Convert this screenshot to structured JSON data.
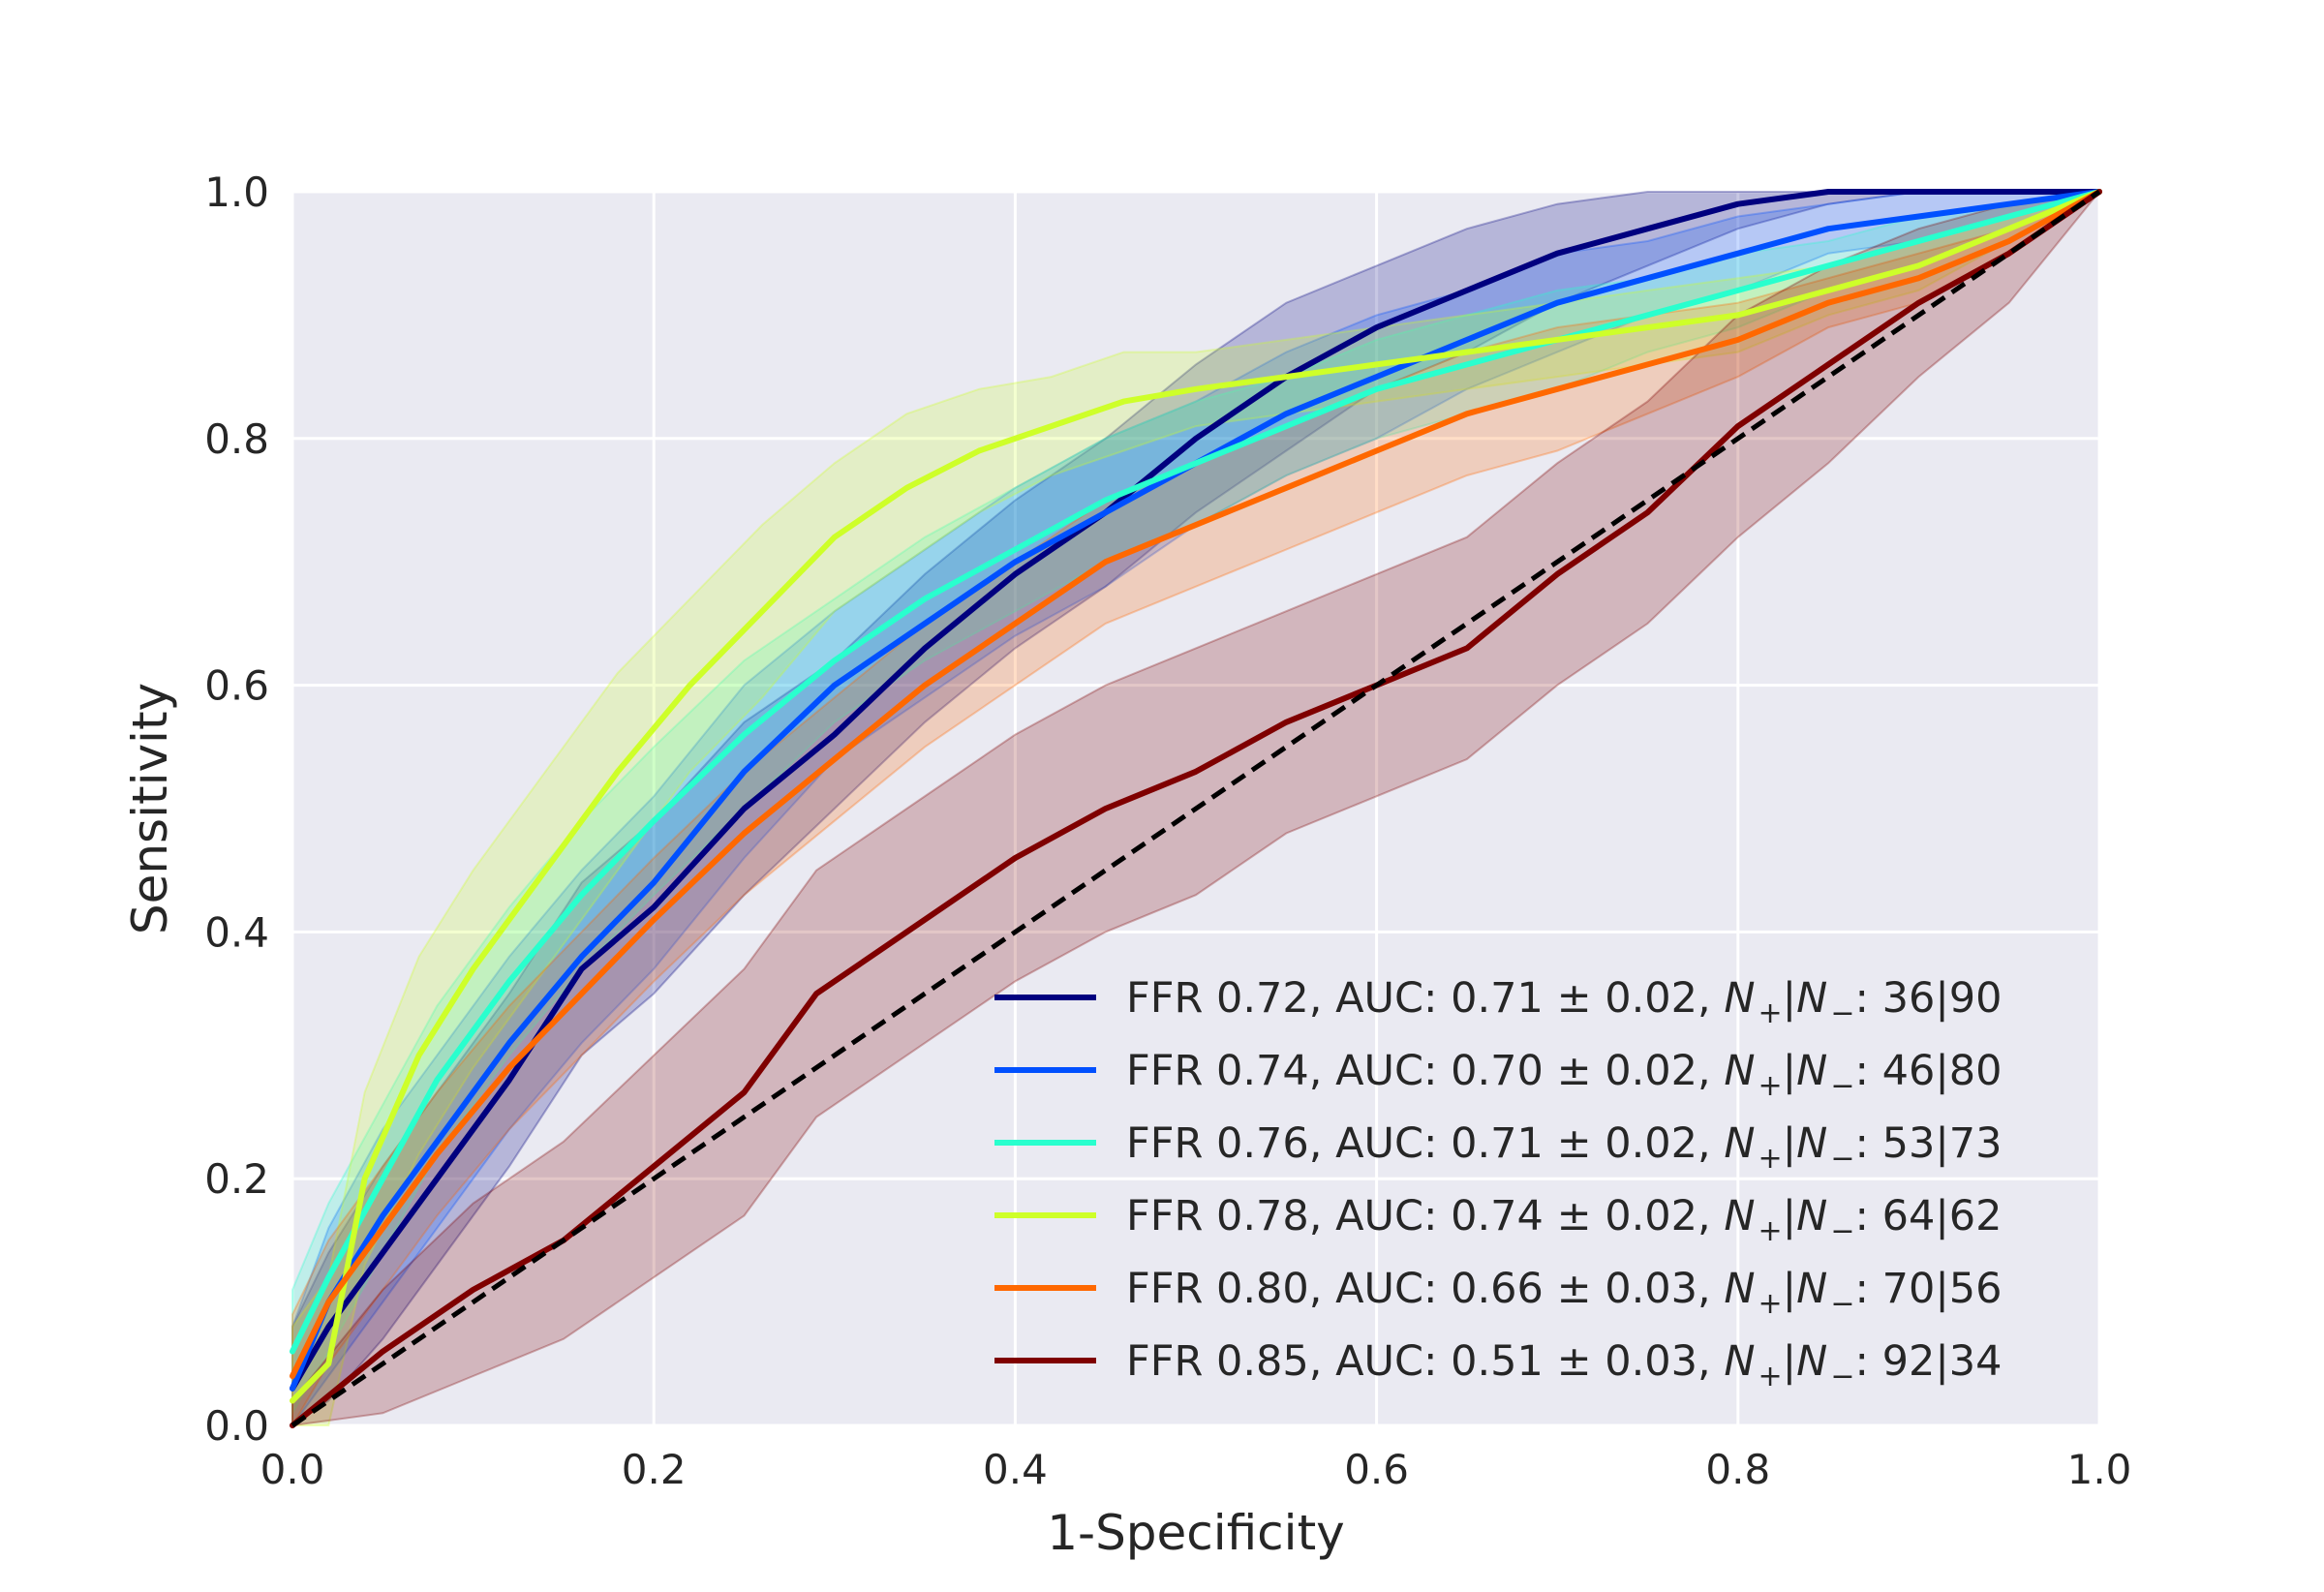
{
  "chart_data": {
    "type": "line",
    "title": "",
    "xlabel": "1-Specificity",
    "ylabel": "Sensitivity",
    "xlim": [
      0.0,
      1.0
    ],
    "ylim": [
      0.0,
      1.0
    ],
    "xticks": [
      "0.0",
      "0.2",
      "0.4",
      "0.6",
      "0.8",
      "1.0"
    ],
    "yticks": [
      "0.0",
      "0.2",
      "0.4",
      "0.6",
      "0.8",
      "1.0"
    ],
    "grid": true,
    "legend_position": "lower-right",
    "background_color": "#eaeaf2",
    "grid_color": "#ffffff",
    "reference_line": {
      "name": "chance",
      "x": [
        0,
        1
      ],
      "y": [
        0,
        1
      ],
      "color": "#000000",
      "style": "dashed"
    },
    "series": [
      {
        "name": "FFR 0.72",
        "legend": {
          "prefix": "FFR 0.72,  AUC: 0.71 ± 0.02, ",
          "suffix": ": 36|90"
        },
        "color": "#00007f",
        "x": [
          0.0,
          0.02,
          0.05,
          0.08,
          0.12,
          0.16,
          0.2,
          0.25,
          0.3,
          0.35,
          0.4,
          0.45,
          0.5,
          0.55,
          0.6,
          0.65,
          0.7,
          0.75,
          0.8,
          0.85,
          0.9,
          0.95,
          1.0
        ],
        "y": [
          0.03,
          0.08,
          0.14,
          0.2,
          0.28,
          0.37,
          0.42,
          0.5,
          0.56,
          0.63,
          0.69,
          0.74,
          0.8,
          0.85,
          0.89,
          0.92,
          0.95,
          0.97,
          0.99,
          1.0,
          1.0,
          1.0,
          1.0
        ],
        "band": [
          0.05,
          0.06,
          0.07,
          0.07,
          0.07,
          0.07,
          0.07,
          0.07,
          0.06,
          0.06,
          0.06,
          0.06,
          0.06,
          0.06,
          0.05,
          0.05,
          0.04,
          0.03,
          0.02,
          0.01,
          0.0,
          0.0,
          0.0
        ]
      },
      {
        "name": "FFR 0.74",
        "legend": {
          "prefix": "FFR 0.74,  AUC: 0.70 ± 0.02, ",
          "suffix": ": 46|80"
        },
        "color": "#0050ff",
        "x": [
          0.0,
          0.02,
          0.05,
          0.08,
          0.12,
          0.16,
          0.2,
          0.25,
          0.3,
          0.35,
          0.4,
          0.45,
          0.5,
          0.55,
          0.6,
          0.65,
          0.7,
          0.75,
          0.8,
          0.85,
          0.9,
          0.95,
          1.0
        ],
        "y": [
          0.03,
          0.1,
          0.17,
          0.23,
          0.31,
          0.38,
          0.44,
          0.53,
          0.6,
          0.65,
          0.7,
          0.74,
          0.78,
          0.82,
          0.85,
          0.88,
          0.91,
          0.93,
          0.95,
          0.97,
          0.98,
          0.99,
          1.0
        ],
        "band": [
          0.05,
          0.06,
          0.07,
          0.07,
          0.07,
          0.07,
          0.07,
          0.07,
          0.06,
          0.06,
          0.06,
          0.06,
          0.05,
          0.05,
          0.05,
          0.04,
          0.04,
          0.03,
          0.03,
          0.02,
          0.02,
          0.01,
          0.0
        ]
      },
      {
        "name": "FFR 0.76",
        "legend": {
          "prefix": "FFR 0.76,  AUC: 0.71 ± 0.02, ",
          "suffix": ": 53|73"
        },
        "color": "#29ffce",
        "x": [
          0.0,
          0.02,
          0.05,
          0.08,
          0.12,
          0.16,
          0.2,
          0.25,
          0.3,
          0.35,
          0.4,
          0.45,
          0.5,
          0.55,
          0.6,
          0.65,
          0.7,
          0.75,
          0.8,
          0.85,
          0.9,
          0.95,
          1.0
        ],
        "y": [
          0.06,
          0.12,
          0.2,
          0.28,
          0.36,
          0.43,
          0.49,
          0.56,
          0.62,
          0.67,
          0.71,
          0.75,
          0.78,
          0.81,
          0.84,
          0.86,
          0.88,
          0.9,
          0.92,
          0.94,
          0.96,
          0.98,
          1.0
        ],
        "band": [
          0.05,
          0.06,
          0.06,
          0.06,
          0.06,
          0.06,
          0.06,
          0.06,
          0.05,
          0.05,
          0.05,
          0.05,
          0.05,
          0.04,
          0.04,
          0.04,
          0.04,
          0.03,
          0.03,
          0.02,
          0.02,
          0.01,
          0.0
        ]
      },
      {
        "name": "FFR 0.78",
        "legend": {
          "prefix": "FFR 0.78,  AUC: 0.74 ± 0.02, ",
          "suffix": ": 64|62"
        },
        "color": "#ceff29",
        "x": [
          0.0,
          0.02,
          0.04,
          0.07,
          0.1,
          0.14,
          0.18,
          0.22,
          0.26,
          0.3,
          0.34,
          0.38,
          0.42,
          0.46,
          0.5,
          0.55,
          0.6,
          0.65,
          0.7,
          0.75,
          0.8,
          0.85,
          0.9,
          0.95,
          1.0
        ],
        "y": [
          0.02,
          0.05,
          0.2,
          0.3,
          0.37,
          0.45,
          0.53,
          0.6,
          0.66,
          0.72,
          0.76,
          0.79,
          0.81,
          0.83,
          0.84,
          0.85,
          0.86,
          0.87,
          0.88,
          0.89,
          0.9,
          0.92,
          0.94,
          0.97,
          1.0
        ],
        "band": [
          0.06,
          0.07,
          0.07,
          0.08,
          0.08,
          0.08,
          0.08,
          0.07,
          0.07,
          0.06,
          0.06,
          0.05,
          0.04,
          0.04,
          0.03,
          0.03,
          0.03,
          0.03,
          0.03,
          0.03,
          0.03,
          0.02,
          0.02,
          0.01,
          0.0
        ]
      },
      {
        "name": "FFR 0.80",
        "legend": {
          "prefix": "FFR 0.80,  AUC: 0.66 ± 0.03, ",
          "suffix": ": 70|56"
        },
        "color": "#ff6800",
        "x": [
          0.0,
          0.02,
          0.05,
          0.08,
          0.12,
          0.16,
          0.2,
          0.25,
          0.3,
          0.35,
          0.4,
          0.45,
          0.5,
          0.55,
          0.6,
          0.65,
          0.7,
          0.75,
          0.8,
          0.85,
          0.9,
          0.95,
          1.0
        ],
        "y": [
          0.04,
          0.1,
          0.16,
          0.22,
          0.29,
          0.35,
          0.41,
          0.48,
          0.54,
          0.6,
          0.65,
          0.7,
          0.73,
          0.76,
          0.79,
          0.82,
          0.84,
          0.86,
          0.88,
          0.91,
          0.93,
          0.96,
          1.0
        ],
        "band": [
          0.05,
          0.05,
          0.05,
          0.05,
          0.05,
          0.05,
          0.05,
          0.05,
          0.05,
          0.05,
          0.05,
          0.05,
          0.05,
          0.05,
          0.05,
          0.05,
          0.05,
          0.04,
          0.03,
          0.02,
          0.02,
          0.01,
          0.0
        ]
      },
      {
        "name": "FFR 0.85",
        "legend": {
          "prefix": "FFR 0.85,  AUC: 0.51 ± 0.03, ",
          "suffix": ": 92|34"
        },
        "color": "#7f0000",
        "x": [
          0.0,
          0.05,
          0.1,
          0.15,
          0.2,
          0.25,
          0.29,
          0.32,
          0.36,
          0.4,
          0.45,
          0.5,
          0.55,
          0.6,
          0.65,
          0.7,
          0.75,
          0.8,
          0.85,
          0.9,
          0.95,
          1.0
        ],
        "y": [
          0.0,
          0.06,
          0.11,
          0.15,
          0.21,
          0.27,
          0.35,
          0.38,
          0.42,
          0.46,
          0.5,
          0.53,
          0.57,
          0.6,
          0.63,
          0.69,
          0.74,
          0.81,
          0.86,
          0.91,
          0.95,
          1.0
        ],
        "band": [
          0.02,
          0.05,
          0.07,
          0.08,
          0.09,
          0.1,
          0.1,
          0.1,
          0.1,
          0.1,
          0.1,
          0.1,
          0.09,
          0.09,
          0.09,
          0.09,
          0.09,
          0.09,
          0.08,
          0.06,
          0.04,
          0.0
        ]
      }
    ]
  }
}
